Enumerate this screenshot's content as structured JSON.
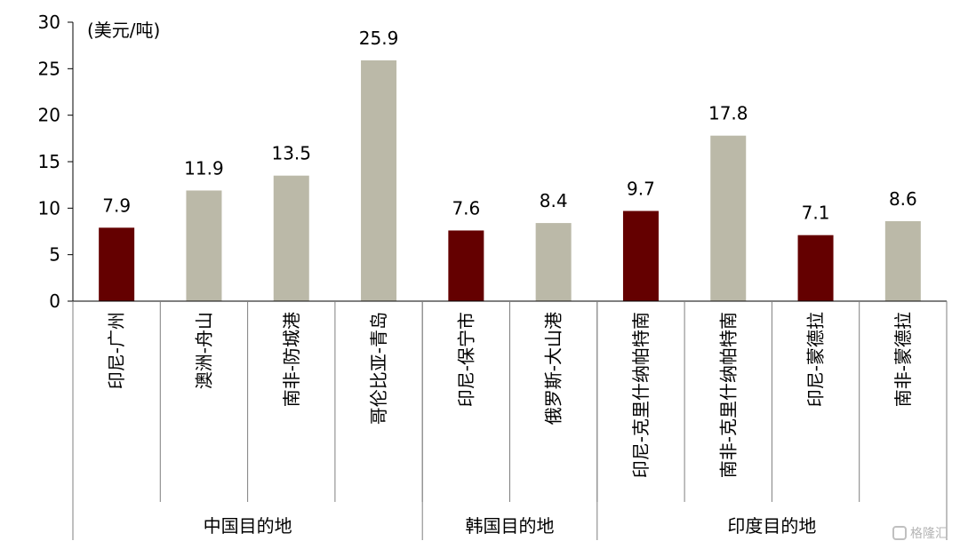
{
  "chart_data": {
    "type": "bar",
    "title": "",
    "ylabel": "(美元/吨)",
    "xlabel": "",
    "ylim": [
      0,
      30
    ],
    "yticks": [
      0,
      5,
      10,
      15,
      20,
      25,
      30
    ],
    "grid": false,
    "categories": [
      "印尼-广州",
      "澳洲-舟山",
      "南非-防城港",
      "哥伦比亚-青岛",
      "印尼-保宁市",
      "俄罗斯-大山港",
      "印尼-克里什纳帕特南",
      "南非-克里什纳帕特南",
      "印尼-蒙德拉",
      "南非-蒙德拉"
    ],
    "values": [
      7.9,
      11.9,
      13.5,
      25.9,
      7.6,
      8.4,
      9.7,
      17.8,
      7.1,
      8.6
    ],
    "data_labels": [
      "7.9",
      "11.9",
      "13.5",
      "25.9",
      "7.6",
      "8.4",
      "9.7",
      "17.8",
      "7.1",
      "8.6"
    ],
    "bar_colors": [
      "#640000",
      "#bbb9a8",
      "#bbb9a8",
      "#bbb9a8",
      "#640000",
      "#bbb9a8",
      "#640000",
      "#bbb9a8",
      "#640000",
      "#bbb9a8"
    ],
    "groups": [
      {
        "label": "中国目的地",
        "count": 4
      },
      {
        "label": "韩国目的地",
        "count": 2
      },
      {
        "label": "印度目的地",
        "count": 4
      }
    ]
  },
  "watermark": {
    "icon": "gelonghui-logo-icon",
    "text": "格隆汇"
  }
}
